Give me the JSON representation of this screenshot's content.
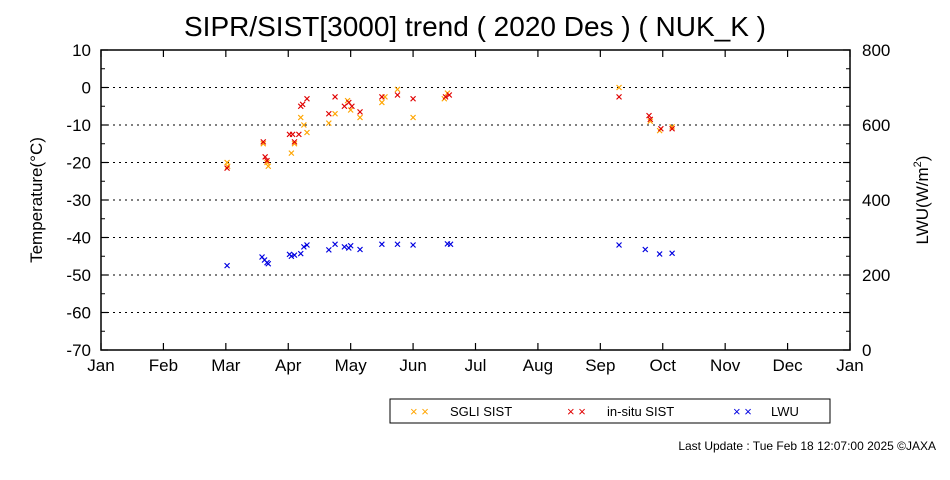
{
  "chart_data": {
    "type": "scatter",
    "title": "SIPR/SIST[3000] trend ( 2020 Des ) ( NUK_K )",
    "xlabel": "",
    "ylabel": "Temperature(°C)",
    "y2label_main": "LWU(W/m",
    "y2label_sup": "2",
    "y2label_end": ")",
    "xlim": [
      0,
      12
    ],
    "ylim": [
      -70,
      10
    ],
    "y2lim": [
      0,
      800
    ],
    "grid": "horizontal dotted",
    "x_tick_labels": [
      "Jan",
      "Feb",
      "Mar",
      "Apr",
      "May",
      "Jun",
      "Jul",
      "Aug",
      "Sep",
      "Oct",
      "Nov",
      "Dec",
      "Jan"
    ],
    "y_ticks": [
      10,
      0,
      -10,
      -20,
      -30,
      -40,
      -50,
      -60,
      -70
    ],
    "y2_ticks": [
      800,
      600,
      400,
      200,
      0
    ],
    "legend_position": "bottom",
    "legend": [
      {
        "name": "SGLI SIST",
        "marker": "× ×",
        "color": "#ffa500"
      },
      {
        "name": "in-situ SIST",
        "marker": "× ×",
        "color": "#e00000"
      },
      {
        "name": "LWU",
        "marker": "× ×",
        "color": "#0000e0"
      }
    ],
    "series": [
      {
        "name": "SGLI SIST",
        "color": "#ffa500",
        "axis": "left",
        "points": [
          [
            2.02,
            -20
          ],
          [
            2.03,
            -21
          ],
          [
            2.6,
            -15
          ],
          [
            2.66,
            -20
          ],
          [
            2.68,
            -21
          ],
          [
            3.05,
            -17.5
          ],
          [
            3.1,
            -15
          ],
          [
            3.2,
            -8
          ],
          [
            3.25,
            -10
          ],
          [
            3.3,
            -12
          ],
          [
            3.65,
            -9.5
          ],
          [
            3.75,
            -7
          ],
          [
            3.95,
            -3.5
          ],
          [
            4.0,
            -6
          ],
          [
            4.15,
            -8
          ],
          [
            4.5,
            -4
          ],
          [
            4.55,
            -2.5
          ],
          [
            4.75,
            -0.5
          ],
          [
            5.0,
            -8
          ],
          [
            5.5,
            -3
          ],
          [
            5.55,
            -1.5
          ],
          [
            8.3,
            0
          ],
          [
            8.8,
            -9
          ],
          [
            8.95,
            -11.5
          ],
          [
            9.15,
            -10.5
          ]
        ]
      },
      {
        "name": "in-situ SIST",
        "color": "#e00000",
        "axis": "left",
        "points": [
          [
            2.02,
            -21.5
          ],
          [
            2.6,
            -14.5
          ],
          [
            2.63,
            -18.5
          ],
          [
            2.66,
            -19.5
          ],
          [
            3.02,
            -12.5
          ],
          [
            3.07,
            -12.5
          ],
          [
            3.1,
            -14.5
          ],
          [
            3.17,
            -12.5
          ],
          [
            3.2,
            -5
          ],
          [
            3.23,
            -4.5
          ],
          [
            3.3,
            -3
          ],
          [
            3.65,
            -7
          ],
          [
            3.75,
            -2.5
          ],
          [
            3.9,
            -5
          ],
          [
            3.97,
            -4
          ],
          [
            4.02,
            -5
          ],
          [
            4.15,
            -6.5
          ],
          [
            4.5,
            -2.5
          ],
          [
            4.75,
            -2
          ],
          [
            5.0,
            -3
          ],
          [
            5.52,
            -2.5
          ],
          [
            5.58,
            -2
          ],
          [
            8.3,
            -2.5
          ],
          [
            8.78,
            -7.5
          ],
          [
            8.8,
            -8.5
          ],
          [
            8.97,
            -11
          ],
          [
            9.15,
            -11
          ]
        ]
      },
      {
        "name": "LWU",
        "color": "#0000e0",
        "axis": "right",
        "points": [
          [
            2.02,
            225
          ],
          [
            2.58,
            248
          ],
          [
            2.62,
            240
          ],
          [
            2.66,
            233
          ],
          [
            2.68,
            230
          ],
          [
            3.02,
            255
          ],
          [
            3.05,
            250
          ],
          [
            3.1,
            253
          ],
          [
            3.2,
            257
          ],
          [
            3.25,
            275
          ],
          [
            3.3,
            280
          ],
          [
            3.65,
            267
          ],
          [
            3.75,
            282
          ],
          [
            3.9,
            275
          ],
          [
            3.97,
            272
          ],
          [
            4.0,
            278
          ],
          [
            4.15,
            268
          ],
          [
            4.5,
            282
          ],
          [
            4.75,
            282
          ],
          [
            5.0,
            280
          ],
          [
            5.55,
            283
          ],
          [
            5.6,
            282
          ],
          [
            8.3,
            280
          ],
          [
            8.72,
            268
          ],
          [
            8.95,
            256
          ],
          [
            9.15,
            258
          ]
        ]
      }
    ]
  },
  "footer": {
    "last_update": "Last Update : Tue Feb 18 12:07:00 2025 ©JAXA"
  }
}
